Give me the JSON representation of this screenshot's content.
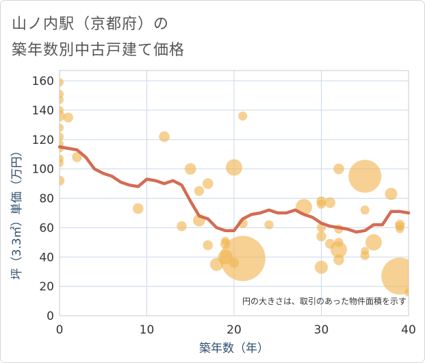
{
  "title_line1": "山ノ内駅（京都府）の",
  "title_line2": "築年数別中古戸建て価格",
  "chart_data": {
    "type": "scatter",
    "title": "山ノ内駅（京都府）の築年数別中古戸建て価格",
    "xlabel": "築年数（年）",
    "ylabel": "坪（3.3㎡）単価（万円）",
    "xlim": [
      0,
      40
    ],
    "ylim": [
      0,
      165
    ],
    "xticks": [
      0,
      10,
      20,
      30,
      40
    ],
    "yticks": [
      0,
      20,
      40,
      60,
      80,
      100,
      120,
      140,
      160
    ],
    "grid": true,
    "note": "円の大きさは、取引のあった物件面積を示す",
    "colors": {
      "bubble": "#f0b450",
      "line": "#d2644b"
    },
    "points": [
      {
        "x": 0,
        "y": 159,
        "s": 1
      },
      {
        "x": 0,
        "y": 151,
        "s": 1
      },
      {
        "x": 0,
        "y": 147,
        "s": 1
      },
      {
        "x": 0,
        "y": 140,
        "s": 1
      },
      {
        "x": 0,
        "y": 136,
        "s": 1.3
      },
      {
        "x": 0,
        "y": 128,
        "s": 1
      },
      {
        "x": 0,
        "y": 122,
        "s": 1
      },
      {
        "x": 0,
        "y": 117,
        "s": 1
      },
      {
        "x": 0,
        "y": 114,
        "s": 1
      },
      {
        "x": 0,
        "y": 107,
        "s": 1
      },
      {
        "x": 0,
        "y": 104,
        "s": 1
      },
      {
        "x": 0,
        "y": 92,
        "s": 1.2
      },
      {
        "x": 1,
        "y": 135,
        "s": 1.2
      },
      {
        "x": 2,
        "y": 108,
        "s": 1.2
      },
      {
        "x": 9,
        "y": 73,
        "s": 1.3
      },
      {
        "x": 12,
        "y": 122,
        "s": 1.3
      },
      {
        "x": 14,
        "y": 61,
        "s": 1.2
      },
      {
        "x": 15,
        "y": 100,
        "s": 1.4
      },
      {
        "x": 16,
        "y": 85,
        "s": 1.2
      },
      {
        "x": 16,
        "y": 65,
        "s": 1.5
      },
      {
        "x": 17,
        "y": 90,
        "s": 1.3
      },
      {
        "x": 17,
        "y": 48,
        "s": 1.2
      },
      {
        "x": 18,
        "y": 35,
        "s": 1.6
      },
      {
        "x": 19,
        "y": 51,
        "s": 1
      },
      {
        "x": 19,
        "y": 49,
        "s": 1.2
      },
      {
        "x": 19,
        "y": 40,
        "s": 1.8
      },
      {
        "x": 20,
        "y": 101,
        "s": 2
      },
      {
        "x": 20,
        "y": 36,
        "s": 1.2
      },
      {
        "x": 21,
        "y": 136,
        "s": 1.1
      },
      {
        "x": 21,
        "y": 63,
        "s": 1.2
      },
      {
        "x": 21,
        "y": 39,
        "s": 5.5
      },
      {
        "x": 24,
        "y": 62,
        "s": 1.1
      },
      {
        "x": 28,
        "y": 74,
        "s": 2
      },
      {
        "x": 30,
        "y": 78,
        "s": 1.2
      },
      {
        "x": 30,
        "y": 76,
        "s": 1.1
      },
      {
        "x": 30,
        "y": 60,
        "s": 1.1
      },
      {
        "x": 30,
        "y": 54,
        "s": 1.2
      },
      {
        "x": 30,
        "y": 33,
        "s": 1.6
      },
      {
        "x": 31,
        "y": 77,
        "s": 1.3
      },
      {
        "x": 31,
        "y": 49,
        "s": 1.2
      },
      {
        "x": 32,
        "y": 100,
        "s": 1.3
      },
      {
        "x": 32,
        "y": 59,
        "s": 1.1
      },
      {
        "x": 32,
        "y": 50,
        "s": 1.1
      },
      {
        "x": 32,
        "y": 45,
        "s": 2
      },
      {
        "x": 32,
        "y": 38,
        "s": 1.3
      },
      {
        "x": 35,
        "y": 95,
        "s": 4
      },
      {
        "x": 35,
        "y": 72,
        "s": 1.1
      },
      {
        "x": 35,
        "y": 44,
        "s": 1
      },
      {
        "x": 35,
        "y": 41,
        "s": 1.1
      },
      {
        "x": 36,
        "y": 50,
        "s": 2
      },
      {
        "x": 38,
        "y": 83,
        "s": 1.5
      },
      {
        "x": 39,
        "y": 62,
        "s": 1.2
      },
      {
        "x": 39,
        "y": 61,
        "s": 1.1
      },
      {
        "x": 39,
        "y": 59,
        "s": 1
      },
      {
        "x": 39,
        "y": 27,
        "s": 4.5
      },
      {
        "x": 40,
        "y": 16,
        "s": 1
      }
    ],
    "trend": {
      "x": [
        0,
        1,
        2,
        3,
        4,
        5,
        6,
        7,
        8,
        9,
        10,
        11,
        12,
        13,
        14,
        15,
        16,
        17,
        18,
        19,
        20,
        21,
        22,
        23,
        24,
        25,
        26,
        27,
        28,
        29,
        30,
        31,
        32,
        33,
        34,
        35,
        36,
        37,
        38,
        39,
        40
      ],
      "y": [
        115,
        114,
        113,
        108,
        100,
        97,
        95,
        91,
        89,
        88,
        93,
        92,
        90,
        92,
        89,
        78,
        68,
        66,
        60,
        58,
        58,
        66,
        69,
        70,
        72,
        70,
        70,
        72,
        69,
        67,
        63,
        61,
        60,
        59,
        57,
        58,
        62,
        62,
        71,
        71,
        70
      ]
    }
  }
}
